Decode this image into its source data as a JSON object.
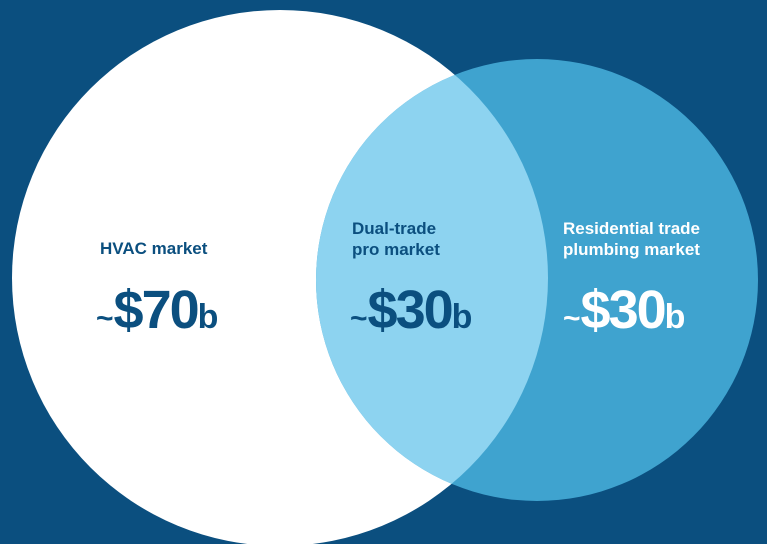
{
  "nodes": [
    {
      "label": [
        "HVAC market"
      ],
      "value": {
        "prefix": "~",
        "amount": "$70",
        "unit": "b"
      }
    },
    {
      "label": [
        "Dual-trade",
        "pro market"
      ],
      "value": {
        "prefix": "~",
        "amount": "$30",
        "unit": "b"
      }
    },
    {
      "label": [
        "Residential trade",
        "plumbing market"
      ],
      "value": {
        "prefix": "~",
        "amount": "$30",
        "unit": "b"
      }
    }
  ]
}
